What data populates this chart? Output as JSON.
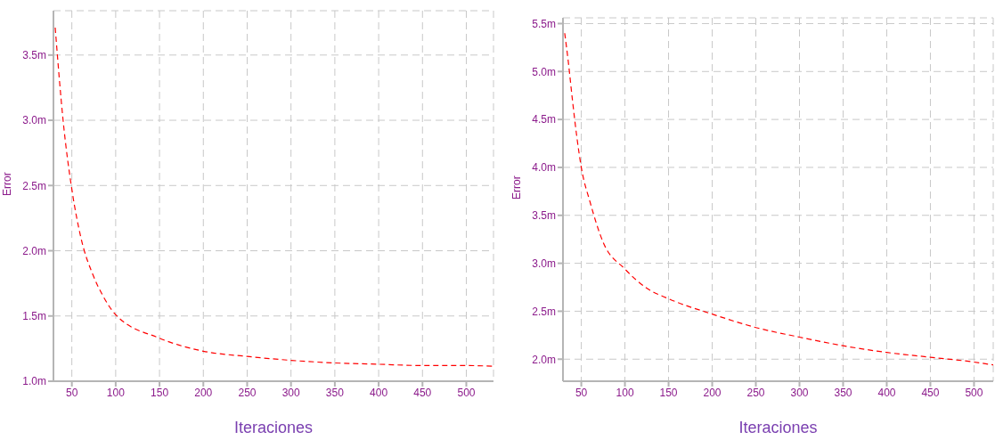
{
  "chart_data": [
    {
      "type": "line",
      "xlabel": "Iteraciones",
      "ylabel": "Error",
      "grid": true,
      "marker": "none",
      "line_style": "dashed",
      "xlim": [
        29,
        531
      ],
      "xticks": [
        50,
        100,
        150,
        200,
        250,
        300,
        350,
        400,
        450,
        500
      ],
      "ylim": [
        1.0,
        3.84
      ],
      "yticks": [
        {
          "value": 1.0,
          "label": "1.0m"
        },
        {
          "value": 1.5,
          "label": "1.5m"
        },
        {
          "value": 2.0,
          "label": "2.0m"
        },
        {
          "value": 2.5,
          "label": "2.5m"
        },
        {
          "value": 3.0,
          "label": "3.0m"
        },
        {
          "value": 3.5,
          "label": "3.5m"
        }
      ],
      "x": [
        31,
        40,
        50,
        60,
        75,
        85,
        100,
        150,
        200,
        250,
        300,
        350,
        400,
        450,
        500,
        531
      ],
      "series": [
        {
          "color": "#ff0000",
          "values": [
            3.71,
            3.0,
            2.47,
            2.11,
            1.8,
            1.66,
            1.51,
            1.33,
            1.23,
            1.19,
            1.16,
            1.14,
            1.13,
            1.12,
            1.12,
            1.115
          ]
        }
      ]
    },
    {
      "type": "line",
      "xlabel": "Iteraciones",
      "ylabel": "Error",
      "grid": true,
      "marker": "none",
      "line_style": "dashed",
      "xlim": [
        29,
        522
      ],
      "xticks": [
        50,
        100,
        150,
        200,
        250,
        300,
        350,
        400,
        450,
        500
      ],
      "ylim": [
        1.77,
        5.56
      ],
      "yticks": [
        {
          "value": 2.0,
          "label": "2.0m"
        },
        {
          "value": 2.5,
          "label": "2.5m"
        },
        {
          "value": 3.0,
          "label": "3.0m"
        },
        {
          "value": 3.5,
          "label": "3.5m"
        },
        {
          "value": 4.0,
          "label": "4.0m"
        },
        {
          "value": 4.5,
          "label": "4.5m"
        },
        {
          "value": 5.0,
          "label": "5.0m"
        },
        {
          "value": 5.5,
          "label": "5.5m"
        }
      ],
      "x": [
        31,
        35,
        40,
        45,
        50,
        60,
        75,
        100,
        125,
        150,
        200,
        250,
        300,
        350,
        400,
        450,
        500,
        522
      ],
      "series": [
        {
          "color": "#ff0000",
          "values": [
            5.4,
            5.11,
            4.69,
            4.31,
            4.0,
            3.64,
            3.22,
            2.94,
            2.74,
            2.63,
            2.47,
            2.33,
            2.23,
            2.14,
            2.07,
            2.02,
            1.97,
            1.94
          ]
        }
      ]
    }
  ]
}
